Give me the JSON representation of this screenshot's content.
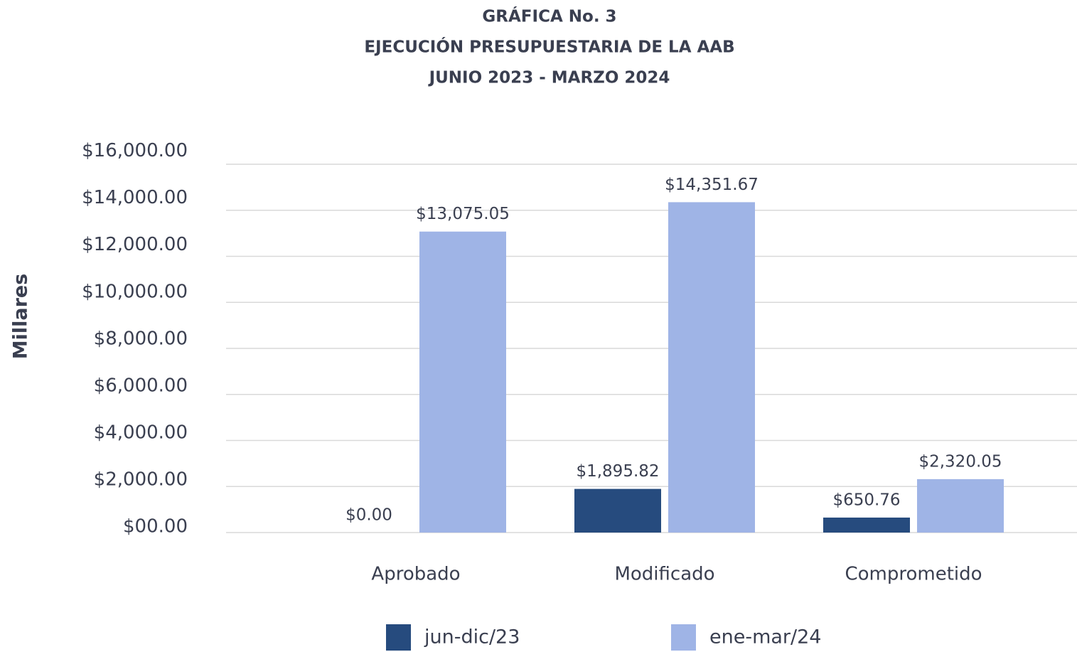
{
  "chart_data": {
    "type": "bar",
    "title": [
      "GRÁFICA No. 3",
      "EJECUCIÓN PRESUPUESTARIA DE LA AAB",
      "JUNIO 2023 - MARZO 2024"
    ],
    "y_label": "Millares",
    "categories": [
      "Aprobado",
      "Modificado",
      "Comprometido"
    ],
    "series": [
      {
        "name": "jun-dic/23",
        "color": "#264b7e",
        "values": [
          0,
          1895.82,
          650.76
        ],
        "value_labels": [
          "$0.00",
          "$1,895.82",
          "$650.76"
        ]
      },
      {
        "name": "ene-mar/24",
        "color": "#9fb4e6",
        "values": [
          13075.05,
          14351.67,
          2320.05
        ],
        "value_labels": [
          "$13,075.05",
          "$14,351.67",
          "$2,320.05"
        ]
      }
    ],
    "ylim": [
      0,
      16000
    ],
    "yticks": [
      {
        "value": 0,
        "label": "$00.00"
      },
      {
        "value": 2000,
        "label": "$2,000.00"
      },
      {
        "value": 4000,
        "label": "$4,000.00"
      },
      {
        "value": 6000,
        "label": "$6,000.00"
      },
      {
        "value": 8000,
        "label": "$8,000.00"
      },
      {
        "value": 10000,
        "label": "$10,000.00"
      },
      {
        "value": 12000,
        "label": "$12,000.00"
      },
      {
        "value": 14000,
        "label": "$14,000.00"
      },
      {
        "value": 16000,
        "label": "$16,000.00"
      }
    ],
    "grid": true,
    "legend": "bottom"
  }
}
